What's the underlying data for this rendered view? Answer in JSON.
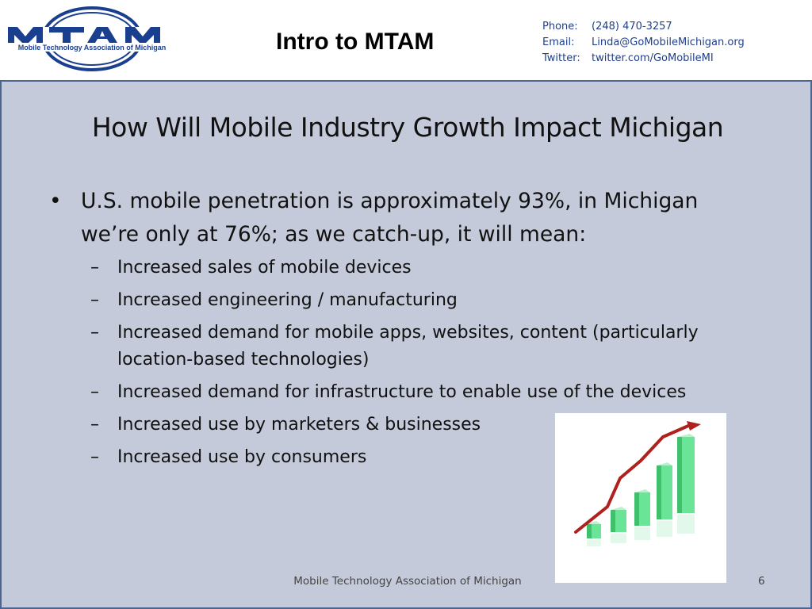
{
  "header": {
    "logo_text": "MTAM",
    "logo_subtext": "Mobile Technology Association of Michigan",
    "title": "Intro to MTAM",
    "contact": [
      {
        "label": "Phone:",
        "value": "(248) 470-3257"
      },
      {
        "label": "Email:",
        "value": "Linda@GoMobileMichigan.org"
      },
      {
        "label": "Twitter:",
        "value": "twitter.com/GoMobileMI"
      }
    ]
  },
  "slide": {
    "title": "How Will Mobile Industry Growth Impact Michigan",
    "bullet": "•",
    "main_point": "U.S. mobile penetration is approximately 93%, in Michigan we’re only at 76%; as we catch-up, it will mean:",
    "dash": "–",
    "sub_points": [
      "Increased sales of mobile devices",
      "Increased engineering / manufacturing",
      "Increased demand for mobile apps, websites, content (particularly location-based technologies)",
      "Increased demand for infrastructure to enable use of the devices",
      "Increased use by marketers & businesses",
      "Increased use by consumers"
    ],
    "image_name": "growth-chart-illustration"
  },
  "footer": {
    "text": "Mobile Technology Association of Michigan",
    "page_number": "6"
  },
  "colors": {
    "slide_bg": "#c4cad9",
    "slide_border": "#4d6691",
    "contact_text": "#1f3f8a",
    "logo_blue": "#1b3f8f",
    "bar_green": "#5fe08a",
    "arrow_red": "#b0201c"
  }
}
